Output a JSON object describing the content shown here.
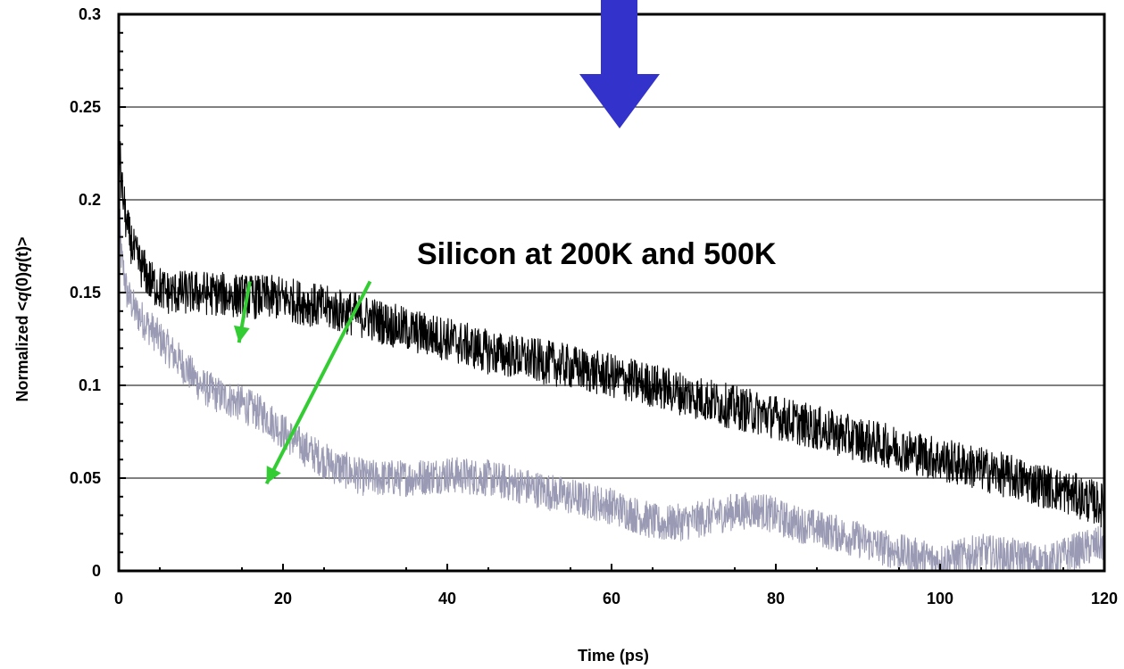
{
  "chart_data": {
    "type": "line",
    "title": "",
    "xlabel": "Time (ps)",
    "ylabel_parts": [
      "Normalized <",
      "q",
      "(0)",
      "q",
      "(t)>"
    ],
    "xlim": [
      0,
      120
    ],
    "ylim": [
      0,
      0.3
    ],
    "x_ticks": [
      0,
      20,
      40,
      60,
      80,
      100,
      120
    ],
    "x_tick_labels": [
      "0",
      "20",
      "40",
      "60",
      "80",
      "100",
      "120"
    ],
    "y_ticks": [
      0,
      0.05,
      0.1,
      0.15,
      0.2,
      0.25,
      0.3
    ],
    "y_tick_labels": [
      "0",
      "0.05",
      "0.1",
      "0.15",
      "0.2",
      "0.25",
      "0.3"
    ],
    "grid": "horizontal",
    "legend": "none",
    "series": [
      {
        "color": "#000000",
        "noise": 0.012,
        "x": [
          0,
          0.3,
          1,
          2,
          4,
          6,
          10,
          15,
          20,
          25,
          30,
          35,
          40,
          45,
          50,
          55,
          60,
          65,
          70,
          75,
          80,
          85,
          90,
          95,
          100,
          105,
          110,
          115,
          120
        ],
        "y": [
          0.24,
          0.21,
          0.185,
          0.17,
          0.155,
          0.15,
          0.15,
          0.148,
          0.147,
          0.142,
          0.137,
          0.13,
          0.125,
          0.118,
          0.114,
          0.11,
          0.105,
          0.1,
          0.094,
          0.088,
          0.083,
          0.077,
          0.071,
          0.066,
          0.06,
          0.055,
          0.049,
          0.043,
          0.035
        ]
      },
      {
        "color": "#9a9ab4",
        "noise": 0.01,
        "x": [
          0,
          0.3,
          1,
          2,
          4,
          6,
          8,
          10,
          12,
          15,
          18,
          20,
          23,
          26,
          30,
          35,
          40,
          45,
          50,
          55,
          60,
          63,
          66,
          70,
          75,
          78,
          82,
          86,
          90,
          95,
          100,
          105,
          110,
          113,
          116,
          120
        ],
        "y": [
          0.2,
          0.17,
          0.15,
          0.14,
          0.13,
          0.12,
          0.11,
          0.1,
          0.095,
          0.09,
          0.083,
          0.075,
          0.065,
          0.057,
          0.05,
          0.05,
          0.052,
          0.05,
          0.045,
          0.04,
          0.035,
          0.03,
          0.025,
          0.027,
          0.032,
          0.033,
          0.026,
          0.022,
          0.017,
          0.01,
          0.005,
          0.01,
          0.007,
          0.004,
          0.01,
          0.015
        ]
      }
    ],
    "annotations": [
      {
        "text": "Silicon at 200K and 500K",
        "x": 0.14,
        "y": 0.165
      }
    ],
    "pointers": [
      {
        "from": [
          0.133,
          0.156
        ],
        "to": [
          0.122,
          0.123
        ],
        "color": "#33cc33"
      },
      {
        "from": [
          0.255,
          0.156
        ],
        "to": [
          0.15,
          0.047
        ],
        "color": "#33cc33"
      }
    ],
    "down_arrow": {
      "color": "#3333cc",
      "x": 0.068
    }
  }
}
